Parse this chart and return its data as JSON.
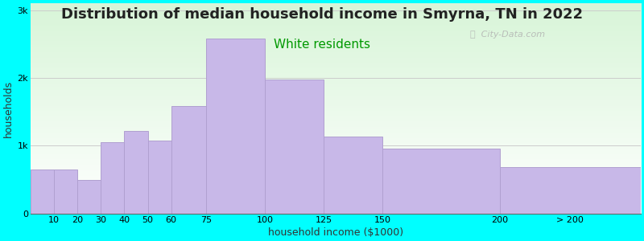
{
  "title": "Distribution of median household income in Smyrna, TN in 2022",
  "subtitle": "White residents",
  "xlabel": "household income ($1000)",
  "ylabel": "households",
  "background_color": "#00FFFF",
  "bar_color": "#c8b8e8",
  "bar_edge_color": "#b0a0d0",
  "categories": [
    "10",
    "20",
    "30",
    "40",
    "50",
    "60",
    "75",
    "100",
    "125",
    "150",
    "200",
    "> 200"
  ],
  "left_edges": [
    0,
    10,
    20,
    30,
    40,
    50,
    60,
    75,
    100,
    125,
    150,
    200
  ],
  "bar_widths": [
    10,
    10,
    10,
    10,
    10,
    10,
    15,
    25,
    25,
    25,
    50,
    60
  ],
  "values": [
    650,
    650,
    500,
    1050,
    1220,
    1080,
    1580,
    2580,
    1980,
    1130,
    960,
    680
  ],
  "ylim": [
    0,
    3100
  ],
  "xlim": [
    0,
    260
  ],
  "yticks": [
    0,
    1000,
    2000,
    3000
  ],
  "ytick_labels": [
    "0",
    "1k",
    "2k",
    "3k"
  ],
  "xtick_positions": [
    10,
    20,
    30,
    40,
    50,
    60,
    75,
    100,
    125,
    150,
    200,
    230
  ],
  "xtick_labels": [
    "10",
    "20",
    "30",
    "40",
    "50",
    "60",
    "75",
    "100",
    "125",
    "150",
    "200",
    "> 200"
  ],
  "title_fontsize": 13,
  "subtitle_fontsize": 11,
  "subtitle_color": "#009900",
  "axis_label_fontsize": 9,
  "tick_fontsize": 8,
  "watermark_text": "ⓘ  City-Data.com",
  "watermark_color": "#b0b0b0"
}
